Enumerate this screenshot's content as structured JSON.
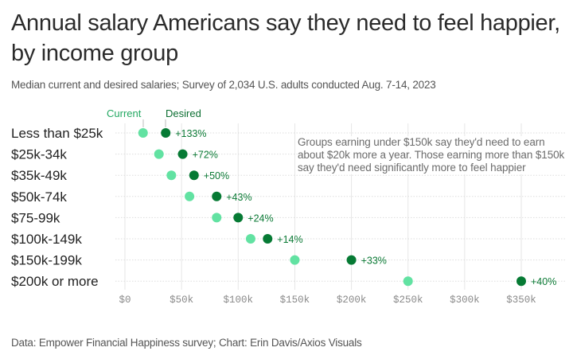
{
  "title": "Annual salary Americans say they need to feel happier, by income group",
  "subtitle": "Median current and desired salaries; Survey of 2,034 U.S. adults conducted Aug. 7-14, 2023",
  "source": "Data: Empower Financial Happiness survey; Chart: Erin Davis/Axios Visuals",
  "annotation": "Groups earning under $150k say they'd need to earn about $20k more a year. Those earning more than $150k say they'd need significantly more to feel happier",
  "colors": {
    "current": "#62e2a2",
    "desired": "#067a34",
    "label": "#0b7a35",
    "grid": "#e6e6e6"
  },
  "chart_data": {
    "type": "dot-range",
    "title": "Annual salary Americans say they need to feel happier, by income group",
    "subtitle": "Median current and desired salaries; Survey of 2,034 U.S. adults conducted Aug. 7-14, 2023",
    "xlabel": "",
    "ylabel": "",
    "xlim": [
      0,
      350
    ],
    "x_ticks": [
      0,
      50,
      100,
      150,
      200,
      250,
      300,
      350
    ],
    "x_tick_labels": [
      "$0",
      "$50k",
      "$100k",
      "$150k",
      "$200k",
      "$250k",
      "$300k",
      "$350k"
    ],
    "grid": true,
    "legend": {
      "current": "Current",
      "desired": "Desired",
      "placement": "top-left"
    },
    "categories": [
      "Less than $25k",
      "$25k-34k",
      "$35k-49k",
      "$50k-74k",
      "$75-99k",
      "$100k-149k",
      "$150k-199k",
      "$200k or more"
    ],
    "series": [
      {
        "name": "Current",
        "values": [
          16,
          30,
          41,
          57,
          81,
          111,
          150,
          250
        ]
      },
      {
        "name": "Desired",
        "values": [
          36,
          51,
          61,
          81,
          100,
          126,
          200,
          350
        ]
      }
    ],
    "change_labels": [
      "+133%",
      "+72%",
      "+50%",
      "+43%",
      "+24%",
      "+14%",
      "+33%",
      "+40%"
    ]
  }
}
